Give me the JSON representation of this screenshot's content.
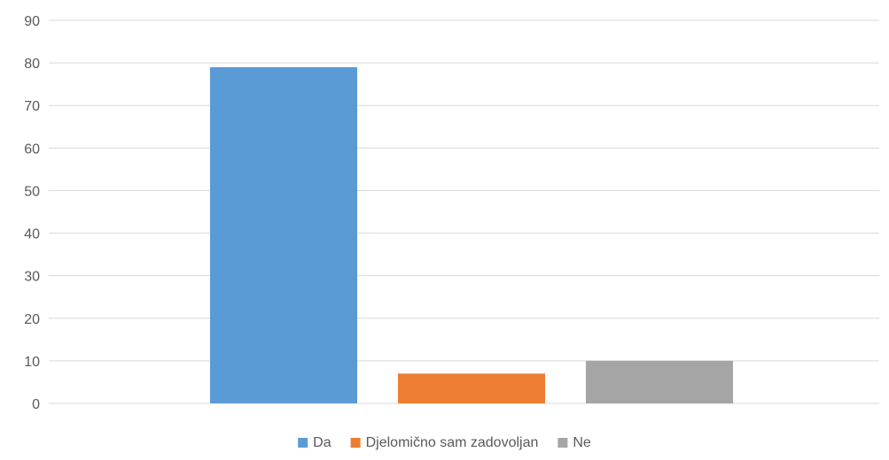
{
  "chart_data": {
    "type": "bar",
    "categories": [
      ""
    ],
    "series": [
      {
        "name": "Da",
        "values": [
          79
        ],
        "color": "#5B9BD5"
      },
      {
        "name": "Djelomično sam zadovoljan",
        "values": [
          7
        ],
        "color": "#ED7D31"
      },
      {
        "name": "Ne",
        "values": [
          10
        ],
        "color": "#A5A5A5"
      }
    ],
    "ylim": [
      0,
      90
    ],
    "yticks": [
      0,
      10,
      20,
      30,
      40,
      50,
      60,
      70,
      80,
      90
    ],
    "grid": true,
    "legend": "bottom",
    "colors": {
      "gridline": "#D9D9D9",
      "tick_label": "#595959"
    }
  }
}
